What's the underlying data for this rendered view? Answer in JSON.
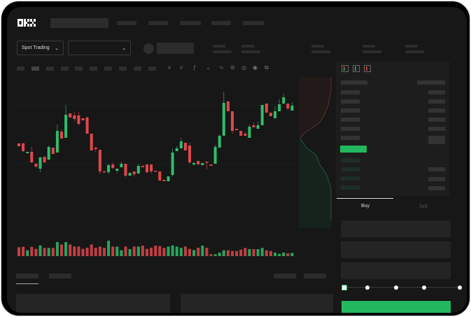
{
  "header": {
    "logo": "OKX"
  },
  "toolbar": {
    "market_selector": "Spot Trading",
    "pair_selector": "",
    "chevron": "⌄"
  },
  "trade_form": {
    "tabs": [
      {
        "label": "Buy",
        "active": true
      },
      {
        "label": "Sell",
        "active": false
      }
    ],
    "leverage_slider_value": 0
  },
  "colors": {
    "up": "#2ebd6b",
    "down": "#e0474c",
    "accent": "#22b85f",
    "background": "#171717"
  },
  "icons": [
    "okx-logo",
    "chevron-down-icon",
    "orderbook-both-icon",
    "orderbook-buy-icon",
    "orderbook-sell-icon",
    "line-tool-icon",
    "pencil-icon",
    "camera-icon",
    "settings-icon",
    "fullscreen-icon"
  ],
  "chart_data": {
    "type": "candlestick",
    "ylim": [
      30,
      250
    ],
    "grid": true,
    "candles": [
      [
        157,
        157,
        153,
        153
      ],
      [
        157,
        158,
        145,
        146
      ],
      [
        143,
        145,
        143,
        145
      ],
      [
        145,
        152,
        129,
        130
      ],
      [
        128,
        129,
        122,
        124
      ],
      [
        121,
        138,
        116,
        137
      ],
      [
        138,
        138,
        130,
        130
      ],
      [
        134,
        154,
        133,
        152
      ],
      [
        151,
        151,
        142,
        142
      ],
      [
        144,
        184,
        144,
        175
      ],
      [
        174,
        177,
        164,
        164
      ],
      [
        165,
        212,
        165,
        198
      ],
      [
        200,
        200,
        194,
        194
      ],
      [
        197,
        202,
        189,
        192
      ],
      [
        197,
        202,
        183,
        185
      ],
      [
        193,
        193,
        190,
        190
      ],
      [
        194,
        196,
        171,
        171
      ],
      [
        171,
        171,
        147,
        147
      ],
      [
        151,
        152,
        145,
        149
      ],
      [
        148,
        148,
        113,
        117
      ],
      [
        117,
        119,
        115,
        116
      ],
      [
        116,
        128,
        113,
        126
      ],
      [
        127,
        130,
        120,
        122
      ],
      [
        118,
        121,
        115,
        121
      ],
      [
        123,
        131,
        123,
        128
      ],
      [
        128,
        128,
        109,
        111
      ],
      [
        111,
        115,
        111,
        115
      ],
      [
        117,
        117,
        110,
        113
      ],
      [
        114,
        128,
        114,
        125
      ],
      [
        125,
        125,
        123,
        123
      ],
      [
        127,
        127,
        114,
        116
      ],
      [
        127,
        127,
        114,
        117
      ],
      [
        118,
        118,
        117,
        117
      ],
      [
        117,
        117,
        104,
        104
      ],
      [
        105,
        105,
        103,
        103
      ],
      [
        103,
        110,
        103,
        110
      ],
      [
        112,
        150,
        110,
        144
      ],
      [
        146,
        153,
        146,
        150
      ],
      [
        150,
        165,
        150,
        160
      ],
      [
        158,
        158,
        147,
        147
      ],
      [
        154,
        158,
        128,
        130
      ],
      [
        127,
        131,
        125,
        129
      ],
      [
        132,
        132,
        127,
        127
      ],
      [
        126,
        129,
        126,
        129
      ],
      [
        131,
        131,
        120,
        130
      ],
      [
        127,
        127,
        125,
        125
      ],
      [
        128,
        155,
        128,
        152
      ],
      [
        151,
        170,
        151,
        168
      ],
      [
        168,
        231,
        168,
        215
      ],
      [
        217,
        218,
        203,
        203
      ],
      [
        203,
        203,
        171,
        175
      ],
      [
        178,
        178,
        176,
        176
      ],
      [
        175,
        175,
        168,
        168
      ],
      [
        171,
        174,
        168,
        168
      ],
      [
        165,
        184,
        165,
        181
      ],
      [
        183,
        187,
        180,
        180
      ],
      [
        178,
        188,
        178,
        183
      ],
      [
        183,
        212,
        183,
        212
      ],
      [
        214,
        214,
        201,
        201
      ],
      [
        201,
        201,
        196,
        196
      ],
      [
        193,
        210,
        193,
        203
      ],
      [
        203,
        220,
        203,
        213
      ],
      [
        214,
        228,
        214,
        223
      ],
      [
        214,
        214,
        204,
        207
      ],
      [
        204,
        216,
        204,
        211
      ]
    ],
    "volume": [
      38,
      40,
      25,
      40,
      31,
      46,
      35,
      35,
      35,
      60,
      50,
      60,
      50,
      41,
      41,
      31,
      36,
      50,
      36,
      41,
      35,
      66,
      41,
      41,
      25,
      41,
      30,
      41,
      41,
      45,
      31,
      36,
      45,
      43,
      35,
      41,
      46,
      41,
      35,
      41,
      31,
      26,
      36,
      45,
      36,
      8,
      8,
      15,
      25,
      25,
      22,
      22,
      28,
      35,
      30,
      30,
      30,
      35,
      25,
      22,
      15,
      10,
      15,
      12,
      14
    ]
  }
}
